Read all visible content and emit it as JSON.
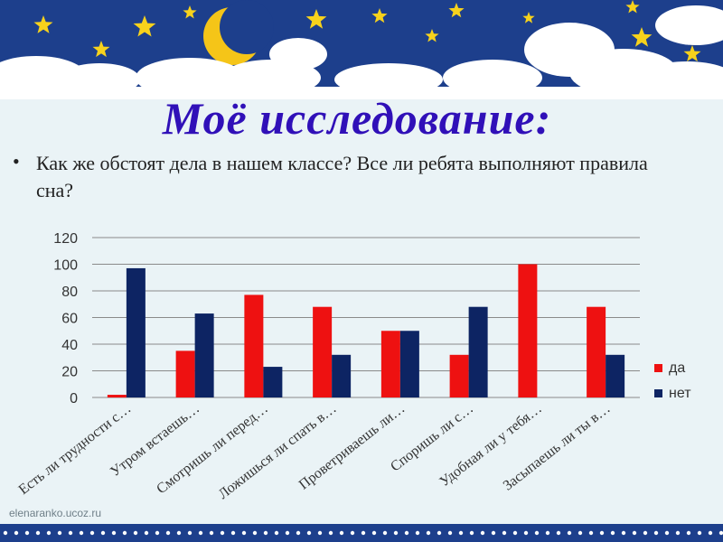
{
  "slide": {
    "title": "Моё исследование:",
    "bullet": "Как же обстоят дела в нашем классе? Все ли ребята выполняют правила сна?",
    "watermark": "elenaranko.ucoz.ru"
  },
  "colors": {
    "sky": "#1d3f8c",
    "title": "#3010b8",
    "series_yes": "#ee1111",
    "series_no": "#0d2463"
  },
  "decor_icons": [
    "moon-icon",
    "star-icon",
    "cloud-icon"
  ],
  "chart_data": {
    "type": "bar",
    "categories": [
      "Есть ли трудности с…",
      "Утром встаешь…",
      "Смотришь ли перед…",
      "Ложишься ли спать в…",
      "Проветриваешь ли…",
      "Споришь ли с…",
      "Удобная ли у тебя…",
      "Засыпаешь ли ты в…"
    ],
    "series": [
      {
        "name": "да",
        "color": "#ee1111",
        "values": [
          2,
          35,
          77,
          68,
          50,
          32,
          100,
          68
        ]
      },
      {
        "name": "нет",
        "color": "#0d2463",
        "values": [
          97,
          63,
          23,
          32,
          50,
          68,
          0,
          32
        ]
      }
    ],
    "ylim": [
      0,
      120
    ],
    "yticks": [
      "0",
      "20",
      "40",
      "60",
      "80",
      "100",
      "120"
    ],
    "grid": true,
    "legend": "right"
  }
}
